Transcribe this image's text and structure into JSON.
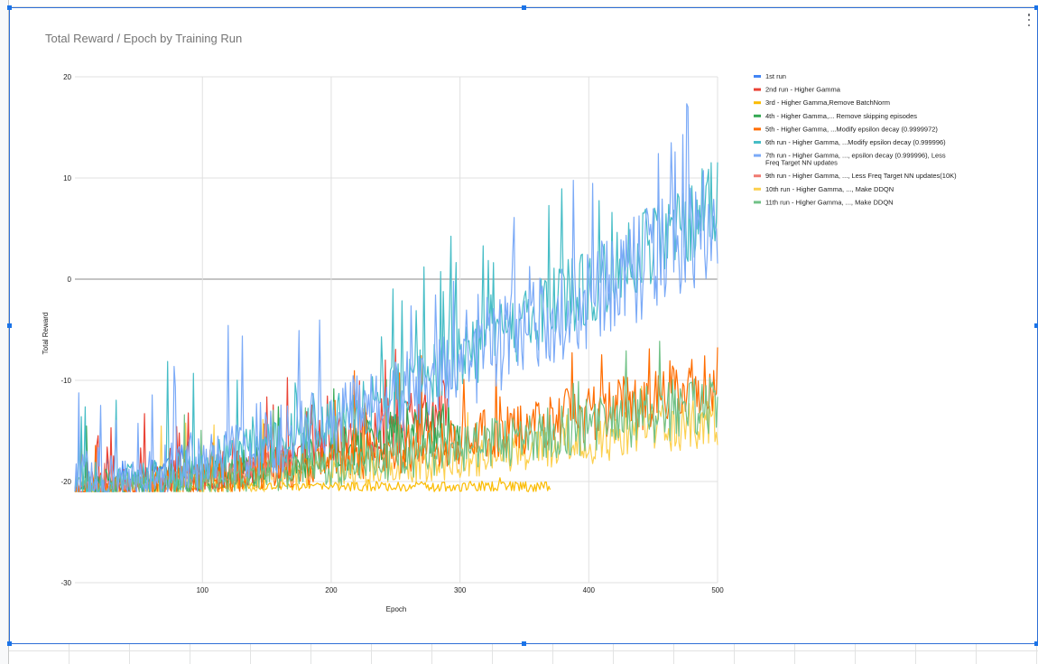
{
  "chart_data": {
    "type": "line",
    "title": "Total Reward / Epoch by Training Run",
    "xlabel": "Epoch",
    "ylabel": "Total Reward",
    "xlim": [
      1,
      500
    ],
    "ylim": [
      -30,
      20
    ],
    "xticks": [
      100,
      200,
      300,
      400,
      500
    ],
    "yticks": [
      -30,
      -20,
      -10,
      0,
      10,
      20
    ],
    "grid": true,
    "legend": "right",
    "series": [
      {
        "name": "1st run",
        "color": "#4285f4",
        "length": 90,
        "start": -20.5,
        "end": -17.5,
        "floor": -21,
        "amp": 1.5,
        "spike": 0.06,
        "seed": 11
      },
      {
        "name": "2nd run - Higher Gamma",
        "color": "#ea4335",
        "length": 290,
        "start": -20.5,
        "end": -13,
        "floor": -21,
        "amp": 3.2,
        "spike": 0.1,
        "seed": 23
      },
      {
        "name": "3rd - Higher Gamma,Remove BatchNorm",
        "color": "#fbbc04",
        "length": 370,
        "start": -20.5,
        "end": -20.5,
        "floor": -21,
        "amp": 0.6,
        "spike": 0.03,
        "seed": 37
      },
      {
        "name": "4th - Higher Gamma,... Remove skipping episodes",
        "color": "#34a853",
        "length": 300,
        "start": -20.5,
        "end": -14,
        "floor": -21,
        "amp": 3.0,
        "spike": 0.06,
        "seed": 41
      },
      {
        "name": "5th - Higher Gamma, ...Modify epsilon decay (0.9999972)",
        "color": "#ff6d01",
        "length": 500,
        "start": -20.5,
        "end": -10,
        "floor": -21,
        "amp": 3.4,
        "spike": 0.07,
        "seed": 53
      },
      {
        "name": "6th run - Higher Gamma, ...Modify epsilon decay (0.999996)",
        "color": "#46bdc6",
        "length": 500,
        "start": -20.5,
        "end": 8,
        "floor": -21,
        "amp": 4.5,
        "spike": 0.08,
        "seed": 67
      },
      {
        "name": "7th run - Higher Gamma, ..., epsilon decay (0.999996), Less Freq Target NN updates",
        "color": "#7baaf7",
        "length": 500,
        "start": -20,
        "end": 6,
        "floor": -21,
        "amp": 6.0,
        "spike": 0.1,
        "seed": 79
      },
      {
        "name": "9th run - Higher Gamma, ..., Less Freq Target NN updates(10K)",
        "color": "#f07b72",
        "length": 170,
        "start": -20.5,
        "end": -18,
        "floor": -21,
        "amp": 1.4,
        "spike": 0.04,
        "seed": 83
      },
      {
        "name": "10th run - Higher Gamma, ..., Make DDQN",
        "color": "#fcd04f",
        "length": 500,
        "start": -20.8,
        "end": -14,
        "floor": -21,
        "amp": 2.6,
        "spike": 0.04,
        "seed": 97
      },
      {
        "name": "11th run - Higher Gamma, ..., Make DDQN",
        "color": "#71c287",
        "length": 500,
        "start": -20.5,
        "end": -12,
        "floor": -21,
        "amp": 3.2,
        "spike": 0.05,
        "seed": 101
      }
    ]
  }
}
